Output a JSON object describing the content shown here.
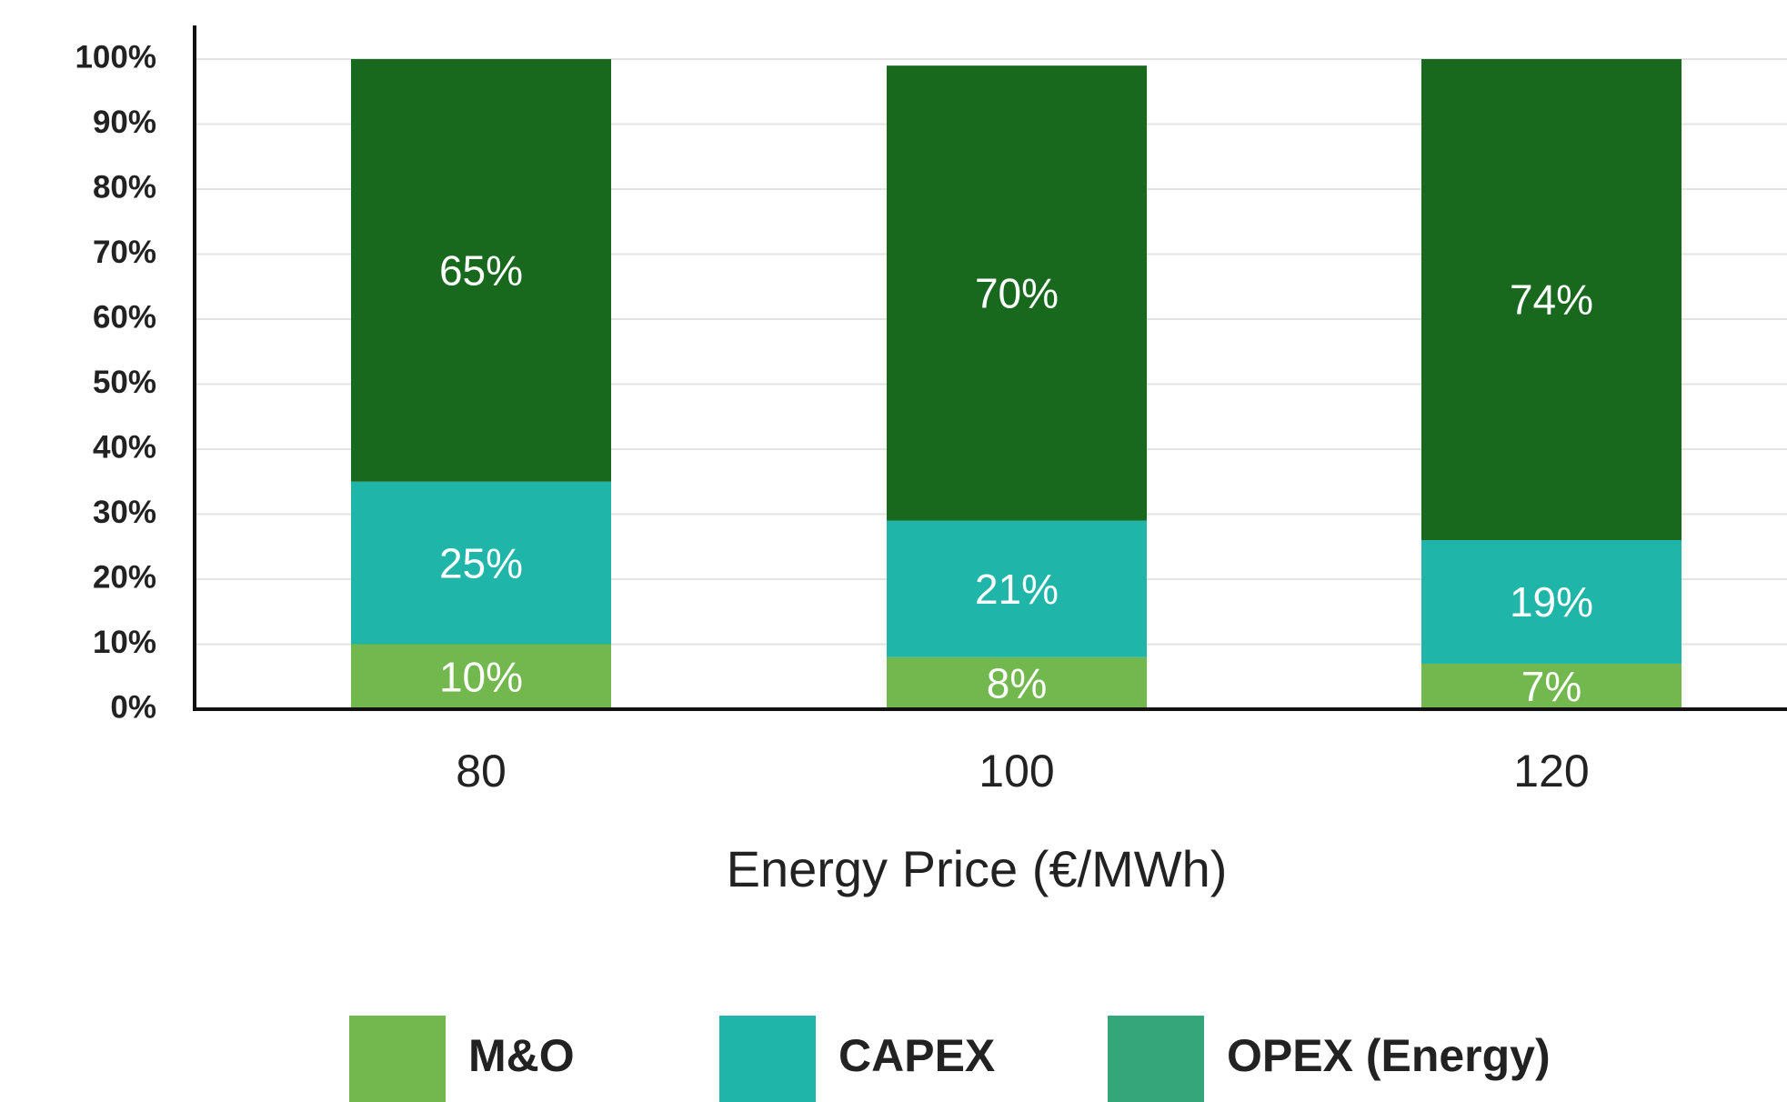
{
  "chart_data": {
    "type": "stacked_bar",
    "x_label": "Energy Price (€/MWh)",
    "categories": [
      "80",
      "100",
      "120"
    ],
    "series": [
      {
        "name": "M&O",
        "color": "#72b84e",
        "values": [
          10,
          8,
          7
        ],
        "value_labels": [
          "10%",
          "8%",
          "7%"
        ]
      },
      {
        "name": "CAPEX",
        "color": "#1fb5a8",
        "values": [
          25,
          21,
          19
        ],
        "value_labels": [
          "25%",
          "21%",
          "19%"
        ]
      },
      {
        "name": "OPEX (Energy)",
        "color": "#18691e",
        "legend_color": "#35a67a",
        "values": [
          65,
          70,
          74
        ],
        "value_labels": [
          "65%",
          "70%",
          "74%"
        ]
      }
    ],
    "ylim": [
      0,
      100
    ],
    "yticks": [
      {
        "value": 0,
        "label": "0%"
      },
      {
        "value": 10,
        "label": "10%"
      },
      {
        "value": 20,
        "label": "20%"
      },
      {
        "value": 30,
        "label": "30%"
      },
      {
        "value": 40,
        "label": "40%"
      },
      {
        "value": 50,
        "label": "50%"
      },
      {
        "value": 60,
        "label": "60%"
      },
      {
        "value": 70,
        "label": "70%"
      },
      {
        "value": 80,
        "label": "80%"
      },
      {
        "value": 90,
        "label": "90%"
      },
      {
        "value": 100,
        "label": "100%"
      }
    ],
    "grid": true,
    "legend": "bottom"
  }
}
